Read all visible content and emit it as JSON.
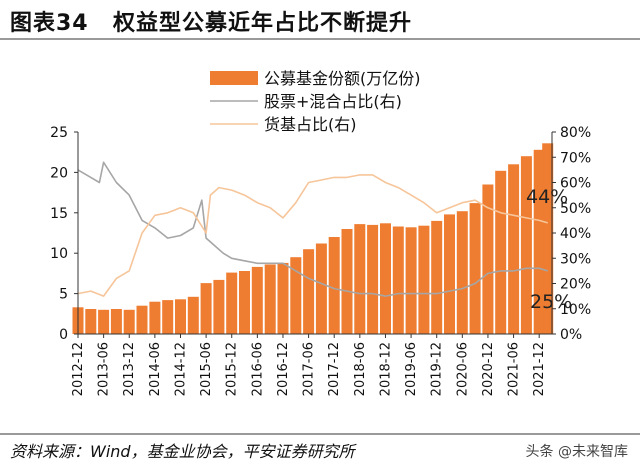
{
  "header": {
    "figure_number": "图表34",
    "title": "权益型公募近年占比不断提升"
  },
  "footer": {
    "source": "资料来源：Wind，基金业协会，平安证券研究所",
    "watermark": "头条 @未来智库"
  },
  "colors": {
    "bar": "#ee7d31",
    "equity_line": "#a6a6a6",
    "money_line": "#f6c59a"
  },
  "chart_data": {
    "type": "bar",
    "x_ticks": [
      "2012-12",
      "2013-06",
      "2013-12",
      "2014-06",
      "2014-12",
      "2015-06",
      "2015-12",
      "2016-06",
      "2016-12",
      "2017-06",
      "2017-12",
      "2018-06",
      "2018-12",
      "2019-06",
      "2019-12",
      "2020-06",
      "2020-12",
      "2021-06",
      "2021-12"
    ],
    "left_axis": {
      "ylim": [
        0,
        25
      ],
      "ticks": [
        "0",
        "5",
        "10",
        "15",
        "20",
        "25"
      ]
    },
    "right_axis": {
      "ylim": [
        0,
        80
      ],
      "ticks": [
        "0%",
        "10%",
        "20%",
        "30%",
        "40%",
        "50%",
        "60%",
        "70%",
        "80%"
      ]
    },
    "legend": [
      "公募基金份额(万亿份)",
      "股票+混合占比(右)",
      "货基占比(右)"
    ],
    "legend_position": "top-center",
    "annotations": [
      {
        "text": "44%"
      },
      {
        "text": "25%"
      }
    ],
    "series": [
      {
        "name": "公募基金份额(万亿份)",
        "type": "bar",
        "axis": "left",
        "x": [
          "2012-12",
          "2013-03",
          "2013-06",
          "2013-09",
          "2013-12",
          "2014-03",
          "2014-06",
          "2014-09",
          "2014-12",
          "2015-03",
          "2015-06",
          "2015-09",
          "2015-12",
          "2016-03",
          "2016-06",
          "2016-09",
          "2016-12",
          "2017-03",
          "2017-06",
          "2017-09",
          "2017-12",
          "2018-03",
          "2018-06",
          "2018-09",
          "2018-12",
          "2019-03",
          "2019-06",
          "2019-09",
          "2019-12",
          "2020-03",
          "2020-06",
          "2020-09",
          "2020-12",
          "2021-03",
          "2021-06",
          "2021-09",
          "2021-12",
          "2022-02"
        ],
        "values": [
          3.3,
          3.1,
          3.0,
          3.1,
          3.0,
          3.5,
          4.0,
          4.2,
          4.3,
          4.6,
          6.3,
          6.7,
          7.6,
          7.8,
          8.3,
          8.6,
          8.8,
          9.5,
          10.5,
          11.2,
          12.0,
          13.0,
          13.6,
          13.5,
          13.7,
          13.3,
          13.2,
          13.4,
          14.0,
          14.8,
          15.2,
          16.2,
          18.5,
          20.2,
          21.0,
          22.0,
          22.8,
          23.6
        ]
      },
      {
        "name": "股票+混合占比(右)",
        "type": "line",
        "axis": "right",
        "x": [
          "2012-12",
          "2013-03",
          "2013-05",
          "2013-06",
          "2013-09",
          "2013-12",
          "2014-03",
          "2014-06",
          "2014-09",
          "2014-12",
          "2015-03",
          "2015-05",
          "2015-06",
          "2015-08",
          "2015-10",
          "2015-12",
          "2016-03",
          "2016-06",
          "2016-09",
          "2016-12",
          "2017-03",
          "2017-06",
          "2017-09",
          "2017-12",
          "2018-03",
          "2018-06",
          "2018-09",
          "2018-12",
          "2019-03",
          "2019-06",
          "2019-09",
          "2019-12",
          "2020-03",
          "2020-06",
          "2020-09",
          "2020-12",
          "2021-03",
          "2021-06",
          "2021-09",
          "2021-12",
          "2022-02"
        ],
        "values": [
          65,
          62,
          60,
          68,
          60,
          55,
          45,
          42,
          38,
          39,
          42,
          53,
          38,
          35,
          32,
          30,
          29,
          28,
          28,
          28,
          25,
          22,
          20,
          18,
          17,
          16,
          16,
          15,
          16,
          16,
          16,
          16,
          17,
          18,
          20,
          24,
          25,
          25,
          26,
          26,
          25
        ]
      },
      {
        "name": "货基占比(右)",
        "type": "line",
        "axis": "right",
        "x": [
          "2012-12",
          "2013-03",
          "2013-06",
          "2013-09",
          "2013-12",
          "2014-03",
          "2014-06",
          "2014-09",
          "2014-12",
          "2015-03",
          "2015-06",
          "2015-07",
          "2015-09",
          "2015-12",
          "2016-03",
          "2016-06",
          "2016-09",
          "2016-12",
          "2017-03",
          "2017-06",
          "2017-09",
          "2017-12",
          "2018-03",
          "2018-06",
          "2018-09",
          "2018-12",
          "2019-03",
          "2019-06",
          "2019-09",
          "2019-12",
          "2020-03",
          "2020-06",
          "2020-09",
          "2020-12",
          "2021-03",
          "2021-06",
          "2021-09",
          "2021-12",
          "2022-02"
        ],
        "values": [
          16,
          17,
          15,
          22,
          25,
          40,
          47,
          48,
          50,
          48,
          40,
          55,
          58,
          57,
          55,
          52,
          50,
          46,
          52,
          60,
          61,
          62,
          62,
          63,
          63,
          60,
          58,
          55,
          52,
          48,
          50,
          52,
          53,
          50,
          48,
          47,
          46,
          45,
          44
        ]
      }
    ]
  }
}
